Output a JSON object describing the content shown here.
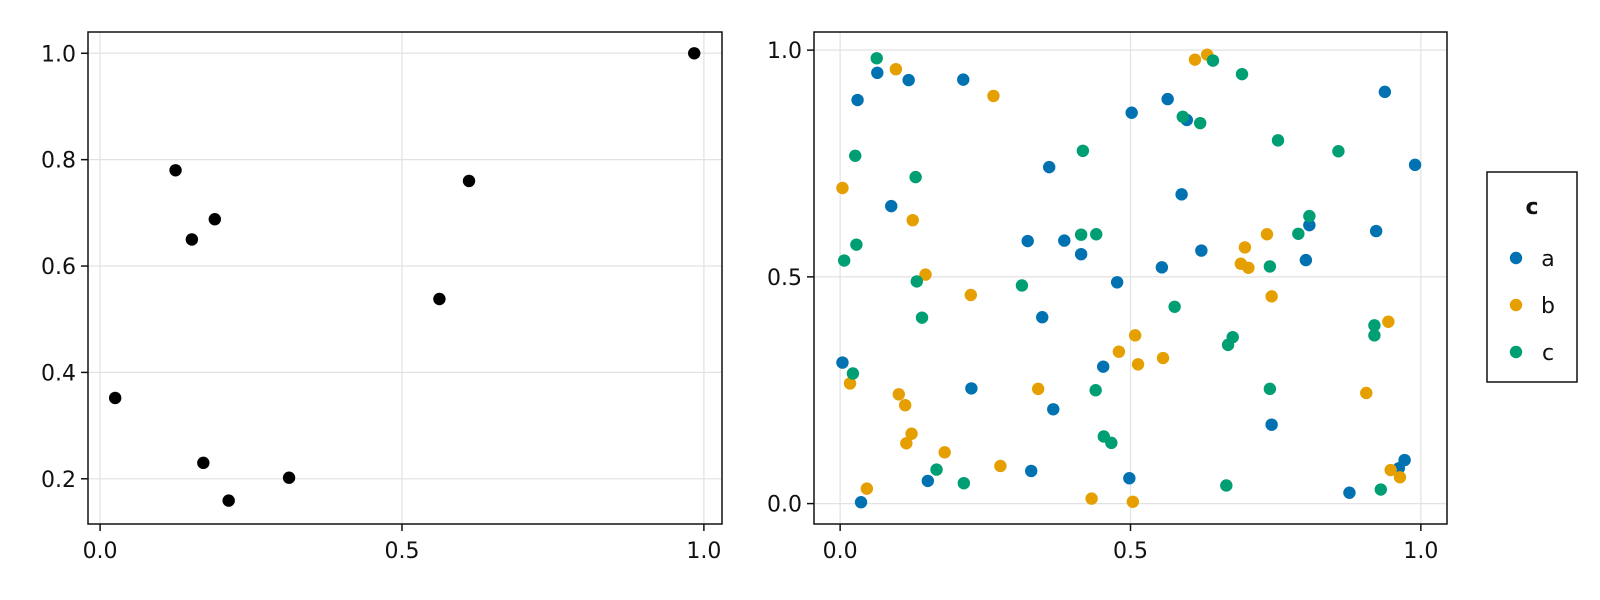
{
  "chart_data": [
    {
      "type": "scatter",
      "title": "",
      "xlabel": "",
      "ylabel": "",
      "xlim": [
        -0.02,
        1.03
      ],
      "ylim": [
        0.115,
        1.04
      ],
      "xticks": [
        "0.0",
        "0.5",
        "1.0"
      ],
      "xtick_values": [
        0.0,
        0.5,
        1.0
      ],
      "yticks": [
        "0.2",
        "0.4",
        "0.6",
        "0.8",
        "1.0"
      ],
      "ytick_values": [
        0.2,
        0.4,
        0.6,
        0.8,
        1.0
      ],
      "grid": true,
      "color": "#000000",
      "points": [
        {
          "x": 0.025,
          "y": 0.352
        },
        {
          "x": 0.125,
          "y": 0.78
        },
        {
          "x": 0.152,
          "y": 0.65
        },
        {
          "x": 0.171,
          "y": 0.23
        },
        {
          "x": 0.19,
          "y": 0.688
        },
        {
          "x": 0.213,
          "y": 0.159
        },
        {
          "x": 0.313,
          "y": 0.202
        },
        {
          "x": 0.562,
          "y": 0.538
        },
        {
          "x": 0.611,
          "y": 0.76
        },
        {
          "x": 0.984,
          "y": 1.0
        }
      ]
    },
    {
      "type": "scatter",
      "title": "",
      "xlabel": "",
      "ylabel": "",
      "xlim": [
        -0.045,
        1.045
      ],
      "ylim": [
        -0.045,
        1.04
      ],
      "xticks": [
        "0.0",
        "0.5",
        "1.0"
      ],
      "xtick_values": [
        0.0,
        0.5,
        1.0
      ],
      "yticks": [
        "0.0",
        "0.5",
        "1.0"
      ],
      "ytick_values": [
        0.0,
        0.5,
        1.0
      ],
      "grid": true,
      "legend": {
        "title": "c",
        "position": "right",
        "entries": [
          "a",
          "b",
          "c"
        ]
      },
      "series": [
        {
          "name": "a",
          "color": "#0072B2",
          "points": [
            {
              "x": 0.004,
              "y": 0.311
            },
            {
              "x": 0.03,
              "y": 0.89
            },
            {
              "x": 0.036,
              "y": 0.003
            },
            {
              "x": 0.064,
              "y": 0.95
            },
            {
              "x": 0.088,
              "y": 0.656
            },
            {
              "x": 0.118,
              "y": 0.934
            },
            {
              "x": 0.151,
              "y": 0.05
            },
            {
              "x": 0.212,
              "y": 0.935
            },
            {
              "x": 0.226,
              "y": 0.254
            },
            {
              "x": 0.323,
              "y": 0.579
            },
            {
              "x": 0.329,
              "y": 0.072
            },
            {
              "x": 0.348,
              "y": 0.411
            },
            {
              "x": 0.36,
              "y": 0.742
            },
            {
              "x": 0.367,
              "y": 0.208
            },
            {
              "x": 0.386,
              "y": 0.58
            },
            {
              "x": 0.415,
              "y": 0.55
            },
            {
              "x": 0.453,
              "y": 0.302
            },
            {
              "x": 0.477,
              "y": 0.488
            },
            {
              "x": 0.498,
              "y": 0.056
            },
            {
              "x": 0.502,
              "y": 0.862
            },
            {
              "x": 0.554,
              "y": 0.521
            },
            {
              "x": 0.564,
              "y": 0.892
            },
            {
              "x": 0.588,
              "y": 0.682
            },
            {
              "x": 0.597,
              "y": 0.846
            },
            {
              "x": 0.622,
              "y": 0.558
            },
            {
              "x": 0.743,
              "y": 0.174
            },
            {
              "x": 0.802,
              "y": 0.537
            },
            {
              "x": 0.808,
              "y": 0.614
            },
            {
              "x": 0.877,
              "y": 0.024
            },
            {
              "x": 0.923,
              "y": 0.601
            },
            {
              "x": 0.938,
              "y": 0.908
            },
            {
              "x": 0.962,
              "y": 0.078
            },
            {
              "x": 0.972,
              "y": 0.096
            },
            {
              "x": 0.99,
              "y": 0.747
            }
          ]
        },
        {
          "name": "b",
          "color": "#E69F00",
          "points": [
            {
              "x": 0.004,
              "y": 0.696
            },
            {
              "x": 0.017,
              "y": 0.265
            },
            {
              "x": 0.046,
              "y": 0.033
            },
            {
              "x": 0.096,
              "y": 0.958
            },
            {
              "x": 0.101,
              "y": 0.241
            },
            {
              "x": 0.112,
              "y": 0.217
            },
            {
              "x": 0.114,
              "y": 0.133
            },
            {
              "x": 0.123,
              "y": 0.154
            },
            {
              "x": 0.125,
              "y": 0.625
            },
            {
              "x": 0.147,
              "y": 0.505
            },
            {
              "x": 0.18,
              "y": 0.113
            },
            {
              "x": 0.225,
              "y": 0.46
            },
            {
              "x": 0.264,
              "y": 0.899
            },
            {
              "x": 0.276,
              "y": 0.083
            },
            {
              "x": 0.341,
              "y": 0.253
            },
            {
              "x": 0.433,
              "y": 0.011
            },
            {
              "x": 0.48,
              "y": 0.335
            },
            {
              "x": 0.504,
              "y": 0.004
            },
            {
              "x": 0.508,
              "y": 0.371
            },
            {
              "x": 0.513,
              "y": 0.307
            },
            {
              "x": 0.556,
              "y": 0.321
            },
            {
              "x": 0.611,
              "y": 0.979
            },
            {
              "x": 0.632,
              "y": 0.99
            },
            {
              "x": 0.69,
              "y": 0.529
            },
            {
              "x": 0.697,
              "y": 0.565
            },
            {
              "x": 0.703,
              "y": 0.52
            },
            {
              "x": 0.735,
              "y": 0.594
            },
            {
              "x": 0.743,
              "y": 0.457
            },
            {
              "x": 0.906,
              "y": 0.244
            },
            {
              "x": 0.944,
              "y": 0.401
            },
            {
              "x": 0.948,
              "y": 0.074
            },
            {
              "x": 0.964,
              "y": 0.058
            }
          ]
        },
        {
          "name": "c",
          "color": "#009E73",
          "points": [
            {
              "x": 0.007,
              "y": 0.536
            },
            {
              "x": 0.022,
              "y": 0.287
            },
            {
              "x": 0.026,
              "y": 0.767
            },
            {
              "x": 0.028,
              "y": 0.571
            },
            {
              "x": 0.063,
              "y": 0.982
            },
            {
              "x": 0.13,
              "y": 0.72
            },
            {
              "x": 0.132,
              "y": 0.49
            },
            {
              "x": 0.141,
              "y": 0.41
            },
            {
              "x": 0.166,
              "y": 0.075
            },
            {
              "x": 0.213,
              "y": 0.045
            },
            {
              "x": 0.313,
              "y": 0.481
            },
            {
              "x": 0.415,
              "y": 0.593
            },
            {
              "x": 0.418,
              "y": 0.778
            },
            {
              "x": 0.441,
              "y": 0.594
            },
            {
              "x": 0.44,
              "y": 0.25
            },
            {
              "x": 0.454,
              "y": 0.148
            },
            {
              "x": 0.467,
              "y": 0.134
            },
            {
              "x": 0.576,
              "y": 0.434
            },
            {
              "x": 0.59,
              "y": 0.853
            },
            {
              "x": 0.62,
              "y": 0.839
            },
            {
              "x": 0.642,
              "y": 0.977
            },
            {
              "x": 0.665,
              "y": 0.04
            },
            {
              "x": 0.668,
              "y": 0.35
            },
            {
              "x": 0.676,
              "y": 0.367
            },
            {
              "x": 0.692,
              "y": 0.947
            },
            {
              "x": 0.74,
              "y": 0.523
            },
            {
              "x": 0.74,
              "y": 0.253
            },
            {
              "x": 0.754,
              "y": 0.801
            },
            {
              "x": 0.789,
              "y": 0.595
            },
            {
              "x": 0.808,
              "y": 0.634
            },
            {
              "x": 0.858,
              "y": 0.777
            },
            {
              "x": 0.92,
              "y": 0.371
            },
            {
              "x": 0.92,
              "y": 0.393
            },
            {
              "x": 0.931,
              "y": 0.031
            }
          ]
        }
      ]
    }
  ]
}
